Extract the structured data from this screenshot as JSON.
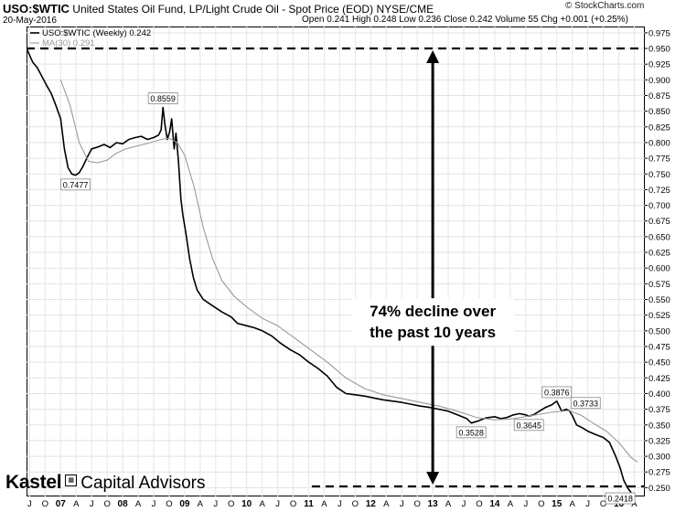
{
  "header": {
    "ticker": "USO:$WTIC",
    "description": "United States Oil Fund, LP/Light Crude Oil - Spot Price (EOD)",
    "exchange": "NYSE/CME",
    "date": "20-May-2016",
    "ohlc": "Open 0.241   High 0.248   Low 0.236   Close 0.242   Volume 55   Chg +0.001 (+0.25%)",
    "credit": "© StockCharts.com"
  },
  "logo": {
    "brand": "Kastel",
    "rest": "Capital Advisors"
  },
  "chart_data": {
    "type": "line",
    "legend": [
      "USO:$WTIC (Weekly) 0.242",
      "MA(30) 0.291"
    ],
    "ylim": [
      0.236,
      0.985
    ],
    "y_ticks": [
      "0.250",
      "0.275",
      "0.300",
      "0.325",
      "0.350",
      "0.375",
      "0.400",
      "0.425",
      "0.450",
      "0.475",
      "0.500",
      "0.525",
      "0.550",
      "0.575",
      "0.600",
      "0.625",
      "0.650",
      "0.675",
      "0.700",
      "0.725",
      "0.750",
      "0.775",
      "0.800",
      "0.825",
      "0.850",
      "0.875",
      "0.900",
      "0.925",
      "0.950",
      "0.975"
    ],
    "x_range": [
      2006.45,
      2016.42
    ],
    "x_ticks": [
      {
        "x": 2006.5,
        "label": "J"
      },
      {
        "x": 2006.75,
        "label": "O"
      },
      {
        "x": 2007.0,
        "label": "07"
      },
      {
        "x": 2007.25,
        "label": "A"
      },
      {
        "x": 2007.5,
        "label": "J"
      },
      {
        "x": 2007.75,
        "label": "O"
      },
      {
        "x": 2008.0,
        "label": "08"
      },
      {
        "x": 2008.25,
        "label": "A"
      },
      {
        "x": 2008.5,
        "label": "J"
      },
      {
        "x": 2008.75,
        "label": "O"
      },
      {
        "x": 2009.0,
        "label": "09"
      },
      {
        "x": 2009.25,
        "label": "A"
      },
      {
        "x": 2009.5,
        "label": "J"
      },
      {
        "x": 2009.75,
        "label": "O"
      },
      {
        "x": 2010.0,
        "label": "10"
      },
      {
        "x": 2010.25,
        "label": "A"
      },
      {
        "x": 2010.5,
        "label": "J"
      },
      {
        "x": 2010.75,
        "label": "O"
      },
      {
        "x": 2011.0,
        "label": "11"
      },
      {
        "x": 2011.25,
        "label": "A"
      },
      {
        "x": 2011.5,
        "label": "J"
      },
      {
        "x": 2011.75,
        "label": "O"
      },
      {
        "x": 2012.0,
        "label": "12"
      },
      {
        "x": 2012.25,
        "label": "A"
      },
      {
        "x": 2012.5,
        "label": "J"
      },
      {
        "x": 2012.75,
        "label": "O"
      },
      {
        "x": 2013.0,
        "label": "13"
      },
      {
        "x": 2013.25,
        "label": "A"
      },
      {
        "x": 2013.5,
        "label": "J"
      },
      {
        "x": 2013.75,
        "label": "O"
      },
      {
        "x": 2014.0,
        "label": "14"
      },
      {
        "x": 2014.25,
        "label": "A"
      },
      {
        "x": 2014.5,
        "label": "J"
      },
      {
        "x": 2014.75,
        "label": "O"
      },
      {
        "x": 2015.0,
        "label": "15"
      },
      {
        "x": 2015.25,
        "label": "A"
      },
      {
        "x": 2015.5,
        "label": "J"
      },
      {
        "x": 2015.75,
        "label": "O"
      },
      {
        "x": 2016.0,
        "label": "16"
      },
      {
        "x": 2016.25,
        "label": "A"
      }
    ],
    "series": [
      {
        "name": "USO:$WTIC (Weekly) 0.242",
        "color": "#000000",
        "points": [
          [
            2006.46,
            0.948
          ],
          [
            2006.55,
            0.928
          ],
          [
            2006.62,
            0.92
          ],
          [
            2006.7,
            0.905
          ],
          [
            2006.78,
            0.89
          ],
          [
            2006.85,
            0.878
          ],
          [
            2006.92,
            0.86
          ],
          [
            2007.0,
            0.838
          ],
          [
            2007.06,
            0.79
          ],
          [
            2007.12,
            0.76
          ],
          [
            2007.18,
            0.75
          ],
          [
            2007.24,
            0.748
          ],
          [
            2007.3,
            0.752
          ],
          [
            2007.36,
            0.762
          ],
          [
            2007.42,
            0.775
          ],
          [
            2007.5,
            0.79
          ],
          [
            2007.6,
            0.793
          ],
          [
            2007.7,
            0.797
          ],
          [
            2007.8,
            0.792
          ],
          [
            2007.9,
            0.8
          ],
          [
            2008.0,
            0.798
          ],
          [
            2008.1,
            0.805
          ],
          [
            2008.2,
            0.808
          ],
          [
            2008.3,
            0.81
          ],
          [
            2008.4,
            0.805
          ],
          [
            2008.5,
            0.808
          ],
          [
            2008.58,
            0.812
          ],
          [
            2008.62,
            0.82
          ],
          [
            2008.65,
            0.856
          ],
          [
            2008.68,
            0.83
          ],
          [
            2008.72,
            0.805
          ],
          [
            2008.76,
            0.818
          ],
          [
            2008.79,
            0.838
          ],
          [
            2008.83,
            0.79
          ],
          [
            2008.86,
            0.815
          ],
          [
            2008.9,
            0.77
          ],
          [
            2008.94,
            0.71
          ],
          [
            2008.97,
            0.685
          ],
          [
            2009.02,
            0.655
          ],
          [
            2009.08,
            0.615
          ],
          [
            2009.14,
            0.585
          ],
          [
            2009.2,
            0.565
          ],
          [
            2009.3,
            0.55
          ],
          [
            2009.45,
            0.54
          ],
          [
            2009.6,
            0.53
          ],
          [
            2009.75,
            0.522
          ],
          [
            2009.85,
            0.512
          ],
          [
            2010.0,
            0.508
          ],
          [
            2010.12,
            0.505
          ],
          [
            2010.25,
            0.5
          ],
          [
            2010.4,
            0.492
          ],
          [
            2010.55,
            0.48
          ],
          [
            2010.7,
            0.47
          ],
          [
            2010.85,
            0.462
          ],
          [
            2011.0,
            0.45
          ],
          [
            2011.15,
            0.44
          ],
          [
            2011.3,
            0.428
          ],
          [
            2011.45,
            0.41
          ],
          [
            2011.6,
            0.4
          ],
          [
            2011.75,
            0.398
          ],
          [
            2011.9,
            0.396
          ],
          [
            2012.05,
            0.393
          ],
          [
            2012.2,
            0.39
          ],
          [
            2012.35,
            0.388
          ],
          [
            2012.5,
            0.386
          ],
          [
            2012.65,
            0.383
          ],
          [
            2012.8,
            0.38
          ],
          [
            2012.95,
            0.378
          ],
          [
            2013.1,
            0.375
          ],
          [
            2013.25,
            0.372
          ],
          [
            2013.4,
            0.366
          ],
          [
            2013.55,
            0.36
          ],
          [
            2013.62,
            0.353
          ],
          [
            2013.72,
            0.356
          ],
          [
            2013.85,
            0.361
          ],
          [
            2014.0,
            0.363
          ],
          [
            2014.1,
            0.36
          ],
          [
            2014.2,
            0.362
          ],
          [
            2014.3,
            0.366
          ],
          [
            2014.4,
            0.368
          ],
          [
            2014.5,
            0.366
          ],
          [
            2014.55,
            0.364
          ],
          [
            2014.62,
            0.366
          ],
          [
            2014.72,
            0.372
          ],
          [
            2014.82,
            0.378
          ],
          [
            2014.92,
            0.382
          ],
          [
            2015.0,
            0.388
          ],
          [
            2015.08,
            0.372
          ],
          [
            2015.15,
            0.375
          ],
          [
            2015.2,
            0.373
          ],
          [
            2015.25,
            0.365
          ],
          [
            2015.32,
            0.35
          ],
          [
            2015.42,
            0.345
          ],
          [
            2015.5,
            0.34
          ],
          [
            2015.62,
            0.335
          ],
          [
            2015.75,
            0.33
          ],
          [
            2015.85,
            0.322
          ],
          [
            2015.95,
            0.3
          ],
          [
            2016.02,
            0.282
          ],
          [
            2016.08,
            0.262
          ],
          [
            2016.14,
            0.25
          ],
          [
            2016.2,
            0.242
          ]
        ]
      },
      {
        "name": "MA(30) 0.291",
        "color": "#9a9a9a",
        "points": [
          [
            2007.0,
            0.9
          ],
          [
            2007.15,
            0.86
          ],
          [
            2007.3,
            0.8
          ],
          [
            2007.45,
            0.77
          ],
          [
            2007.6,
            0.768
          ],
          [
            2007.75,
            0.772
          ],
          [
            2007.9,
            0.783
          ],
          [
            2008.05,
            0.79
          ],
          [
            2008.25,
            0.795
          ],
          [
            2008.45,
            0.8
          ],
          [
            2008.62,
            0.805
          ],
          [
            2008.75,
            0.807
          ],
          [
            2008.88,
            0.8
          ],
          [
            2009.0,
            0.78
          ],
          [
            2009.15,
            0.73
          ],
          [
            2009.3,
            0.665
          ],
          [
            2009.45,
            0.615
          ],
          [
            2009.6,
            0.58
          ],
          [
            2009.8,
            0.555
          ],
          [
            2010.0,
            0.538
          ],
          [
            2010.25,
            0.52
          ],
          [
            2010.5,
            0.508
          ],
          [
            2010.75,
            0.49
          ],
          [
            2011.0,
            0.472
          ],
          [
            2011.3,
            0.45
          ],
          [
            2011.6,
            0.425
          ],
          [
            2011.9,
            0.408
          ],
          [
            2012.2,
            0.398
          ],
          [
            2012.5,
            0.392
          ],
          [
            2012.8,
            0.386
          ],
          [
            2013.1,
            0.38
          ],
          [
            2013.4,
            0.372
          ],
          [
            2013.7,
            0.362
          ],
          [
            2014.0,
            0.358
          ],
          [
            2014.3,
            0.36
          ],
          [
            2014.6,
            0.365
          ],
          [
            2014.9,
            0.37
          ],
          [
            2015.2,
            0.373
          ],
          [
            2015.4,
            0.365
          ],
          [
            2015.6,
            0.352
          ],
          [
            2015.8,
            0.34
          ],
          [
            2016.0,
            0.322
          ],
          [
            2016.2,
            0.298
          ],
          [
            2016.3,
            0.291
          ]
        ]
      }
    ],
    "annotations": [
      {
        "x": 2008.65,
        "y": 0.8559,
        "label": "0.8559",
        "pos": "above"
      },
      {
        "x": 2007.24,
        "y": 0.7477,
        "label": "0.7477",
        "pos": "below"
      },
      {
        "x": 2013.62,
        "y": 0.3528,
        "label": "0.3528",
        "pos": "below"
      },
      {
        "x": 2014.55,
        "y": 0.3645,
        "label": "0.3645",
        "pos": "below"
      },
      {
        "x": 2015.0,
        "y": 0.3876,
        "label": "0.3876",
        "pos": "above"
      },
      {
        "x": 2015.2,
        "y": 0.3733,
        "label": "0.3733",
        "pos": "above-right"
      },
      {
        "x": 2016.2,
        "y": 0.2418,
        "label": "0.2418",
        "pos": "left"
      }
    ],
    "reference_lines": [
      {
        "y": 0.95,
        "x_from": 2006.45,
        "x_to": 2016.42,
        "style": "dashed"
      },
      {
        "y": 0.252,
        "x_from": 2011.05,
        "x_to": 2016.42,
        "style": "dashed"
      }
    ],
    "arrow": {
      "x": 2013.0,
      "y_top": 0.95,
      "y_bottom": 0.252
    },
    "callout": {
      "lines": [
        "74% decline over",
        "the past 10 years"
      ],
      "x": 2013.0,
      "y": 0.514
    }
  }
}
